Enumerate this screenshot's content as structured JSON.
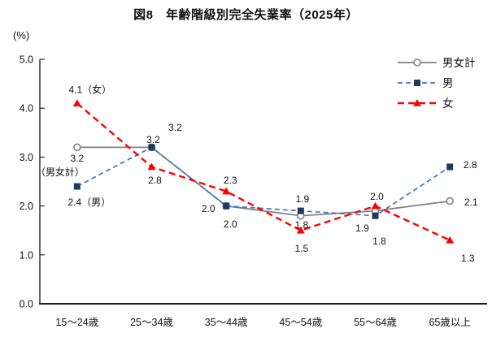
{
  "chart_data": {
    "type": "line",
    "title": "図8　年齢階級別完全失業率（2025年）",
    "unit_label": "(%)",
    "categories": [
      "15〜24歳",
      "25〜34歳",
      "35〜44歳",
      "45〜54歳",
      "55〜64歳",
      "65歳以上"
    ],
    "ylim": [
      0.0,
      5.0
    ],
    "y_ticks": [
      "0.0",
      "1.0",
      "2.0",
      "3.0",
      "4.0",
      "5.0"
    ],
    "grid": false,
    "legend_position": "top-right",
    "series": [
      {
        "id": "total",
        "name": "男女計",
        "values": [
          3.2,
          3.2,
          2.0,
          1.8,
          1.9,
          2.1
        ],
        "line_color": "#808080",
        "marker": "circle-open",
        "marker_color": "#808080",
        "dash": "solid",
        "dash_pattern": "",
        "line_width": 1.8,
        "point_labels": [
          [
            {
              "text": "3.2",
              "dx": 0,
              "dy": 13
            },
            {
              "text": "（男女計）",
              "dx": -21,
              "dy": 30
            }
          ],
          [
            {
              "text": "3.2",
              "dx": 29,
              "dy": -25
            }
          ],
          [
            {
              "text": "2.0",
              "dx": 5,
              "dy": 22
            }
          ],
          [
            {
              "text": "1.8",
              "dx": 1,
              "dy": 11
            }
          ],
          [
            {
              "text": "1.9",
              "dx": -16,
              "dy": 21
            }
          ],
          [
            {
              "text": "2.1",
              "dx": 26,
              "dy": 1
            }
          ]
        ]
      },
      {
        "id": "men",
        "name": "男",
        "values": [
          2.4,
          3.2,
          2.0,
          1.9,
          1.8,
          2.8
        ],
        "line_color": "#4472C4",
        "marker": "square",
        "marker_color": "#1F3864",
        "dash": "dashed",
        "dash_pattern": "6 4",
        "line_width": 1.7,
        "point_labels": [
          [
            {
              "text": "2.4（男）",
              "dx": 15,
              "dy": 19
            }
          ],
          [
            {
              "text": "3.2",
              "dx": 2,
              "dy": -10
            }
          ],
          [
            {
              "text": "2.0",
              "dx": -22,
              "dy": 3
            }
          ],
          [
            {
              "text": "1.9",
              "dx": 2,
              "dy": -15
            }
          ],
          [
            {
              "text": "1.8",
              "dx": 5,
              "dy": 31
            }
          ],
          [
            {
              "text": "2.8",
              "dx": 25,
              "dy": -3
            }
          ]
        ]
      },
      {
        "id": "women",
        "name": "女",
        "values": [
          4.1,
          2.8,
          2.3,
          1.5,
          2.0,
          1.3
        ],
        "line_color": "#FF0000",
        "marker": "triangle",
        "marker_color": "#FF0000",
        "dash": "dashed",
        "dash_pattern": "8 5",
        "line_width": 2.4,
        "point_labels": [
          [
            {
              "text": "4.1（女）",
              "dx": 16,
              "dy": -17
            }
          ],
          [
            {
              "text": "2.8",
              "dx": 4,
              "dy": 16
            }
          ],
          [
            {
              "text": "2.3",
              "dx": 5,
              "dy": -14
            }
          ],
          [
            {
              "text": "1.5",
              "dx": 1,
              "dy": 22
            }
          ],
          [
            {
              "text": "2.0",
              "dx": 2,
              "dy": -12
            }
          ],
          [
            {
              "text": "1.3",
              "dx": 22,
              "dy": 22
            }
          ]
        ]
      }
    ]
  }
}
